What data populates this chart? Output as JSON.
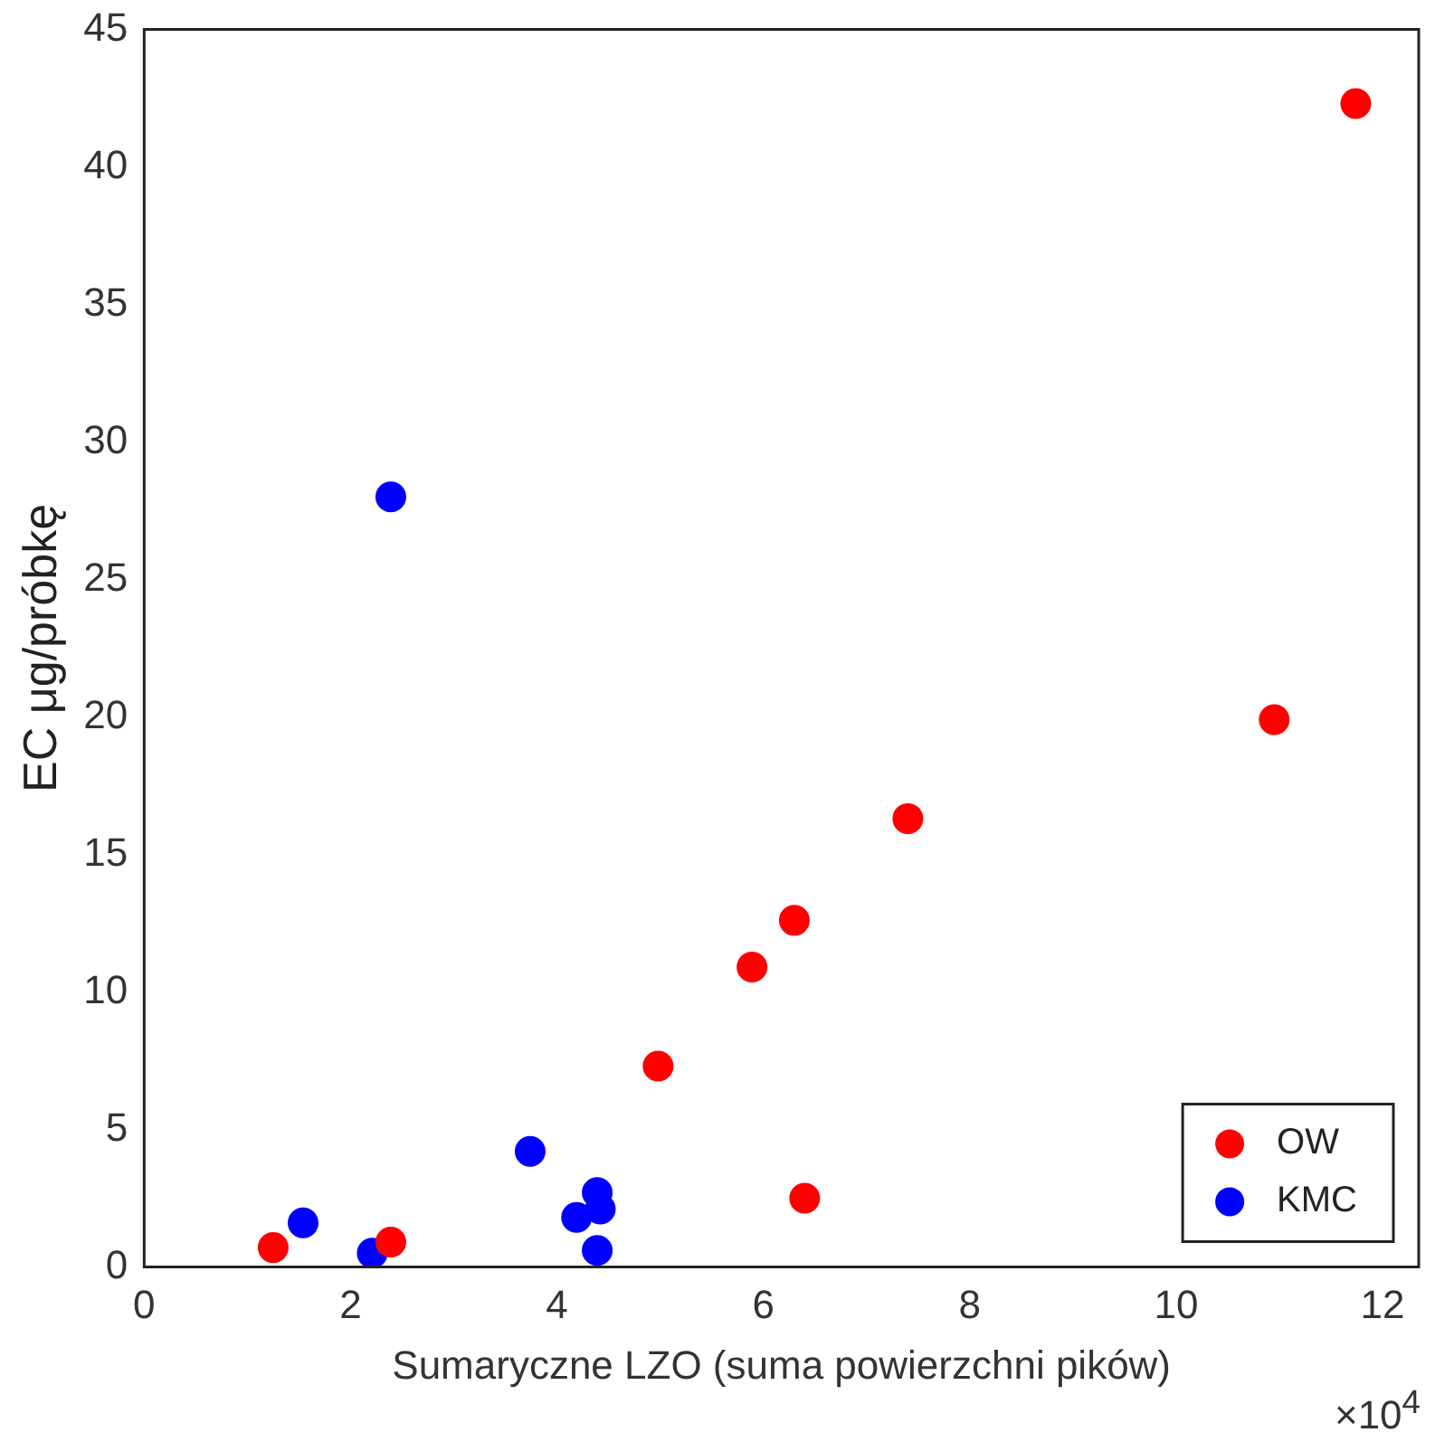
{
  "chart_data": {
    "type": "scatter",
    "xlabel": "Sumaryczne LZO (suma powierzchni pików)",
    "ylabel": "EC μg/próbkę",
    "annotations": [
      "×10$^{4}$"
    ],
    "xlim": [
      0,
      12.35
    ],
    "xticks": [
      0,
      2,
      4,
      6,
      8,
      10,
      12
    ],
    "ylim": [
      0,
      45
    ],
    "yticks": [
      0,
      5,
      10,
      15,
      20,
      25,
      30,
      35,
      40,
      45
    ],
    "grid": false,
    "legend": "bottom right",
    "marker": "circle",
    "series": [
      {
        "name": "OW",
        "color": "#ff0000",
        "x": [
          1.25,
          2.39,
          4.98,
          5.89,
          6.3,
          6.4,
          7.4,
          10.95,
          11.74
        ],
        "values": [
          0.7,
          0.9,
          7.3,
          10.9,
          12.6,
          2.5,
          16.3,
          19.9,
          42.3
        ]
      },
      {
        "name": "KMC",
        "color": "#0000ff",
        "x": [
          1.54,
          2.21,
          2.39,
          3.74,
          4.19,
          4.39,
          4.42,
          4.39
        ],
        "values": [
          1.6,
          0.5,
          28,
          4.2,
          1.8,
          2.7,
          2.1,
          0.6
        ]
      }
    ]
  }
}
